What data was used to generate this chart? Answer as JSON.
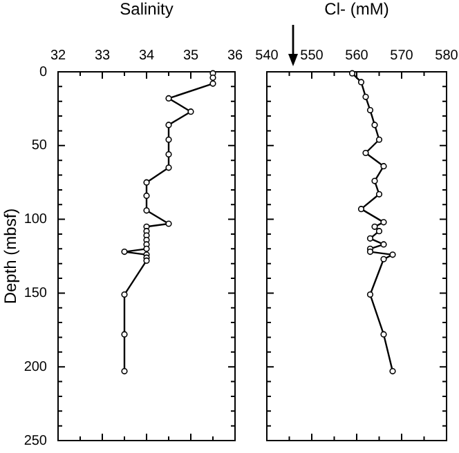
{
  "chart_data": [
    {
      "type": "line",
      "xlabel": "Salinity",
      "ylabel": "Depth (mbsf)",
      "xlim": [
        32,
        36
      ],
      "xticks": [
        32,
        {
          "value": 32.5,
          "label": null
        },
        33,
        {
          "value": 33.5,
          "label": null
        },
        34,
        {
          "value": 34.5,
          "label": null
        },
        35,
        {
          "value": 35.5,
          "label": null
        },
        36
      ],
      "ylim": [
        250,
        0
      ],
      "yticks": [
        0,
        {
          "value": 10,
          "label": null
        },
        {
          "value": 20,
          "label": null
        },
        {
          "value": 30,
          "label": null
        },
        {
          "value": 40,
          "label": null
        },
        50,
        {
          "value": 60,
          "label": null
        },
        {
          "value": 70,
          "label": null
        },
        {
          "value": 80,
          "label": null
        },
        {
          "value": 90,
          "label": null
        },
        100,
        {
          "value": 110,
          "label": null
        },
        {
          "value": 120,
          "label": null
        },
        {
          "value": 130,
          "label": null
        },
        {
          "value": 140,
          "label": null
        },
        150,
        {
          "value": 160,
          "label": null
        },
        {
          "value": 170,
          "label": null
        },
        {
          "value": 180,
          "label": null
        },
        {
          "value": 190,
          "label": null
        },
        200,
        {
          "value": 210,
          "label": null
        },
        {
          "value": 220,
          "label": null
        },
        {
          "value": 230,
          "label": null
        },
        {
          "value": 240,
          "label": null
        },
        250
      ],
      "marker": "circle",
      "line_style": "solid",
      "series": [
        {
          "color": "#000000",
          "x": [
            35.5,
            35.5,
            35.5,
            34.5,
            35.0,
            34.5,
            34.5,
            34.5,
            34.5,
            34.0,
            34.0,
            34.0,
            34.5,
            34.0,
            34.0,
            34.0,
            34.0,
            34.0,
            34.0,
            33.5,
            34.0,
            34.0,
            34.0,
            33.5,
            33.5,
            33.5
          ],
          "values": [
            1,
            4,
            8,
            18,
            27,
            36,
            46,
            56,
            65,
            75,
            84,
            94,
            103,
            105,
            108,
            111,
            114,
            117,
            120,
            122,
            124,
            126,
            128,
            151,
            178,
            203
          ]
        }
      ]
    },
    {
      "type": "line",
      "xlabel": "Cl- (mM)",
      "xlim": [
        540,
        580
      ],
      "xticks": [
        540,
        {
          "value": 545,
          "label": null
        },
        550,
        {
          "value": 555,
          "label": null
        },
        560,
        {
          "value": 565,
          "label": null
        },
        570,
        {
          "value": 575,
          "label": null
        },
        580
      ],
      "ylim": [
        250,
        0
      ],
      "yticks": [
        0,
        {
          "value": 10,
          "label": null
        },
        {
          "value": 20,
          "label": null
        },
        {
          "value": 30,
          "label": null
        },
        {
          "value": 40,
          "label": null
        },
        50,
        {
          "value": 60,
          "label": null
        },
        {
          "value": 70,
          "label": null
        },
        {
          "value": 80,
          "label": null
        },
        {
          "value": 90,
          "label": null
        },
        100,
        {
          "value": 110,
          "label": null
        },
        {
          "value": 120,
          "label": null
        },
        {
          "value": 130,
          "label": null
        },
        {
          "value": 140,
          "label": null
        },
        150,
        {
          "value": 160,
          "label": null
        },
        {
          "value": 170,
          "label": null
        },
        {
          "value": 180,
          "label": null
        },
        {
          "value": 190,
          "label": null
        },
        200,
        {
          "value": 210,
          "label": null
        },
        {
          "value": 220,
          "label": null
        },
        {
          "value": 230,
          "label": null
        },
        {
          "value": 240,
          "label": null
        },
        250
      ],
      "tick_labels": "x",
      "marker": "circle",
      "line_style": "solid",
      "series": [
        {
          "color": "#000000",
          "x": [
            559,
            561,
            562,
            563,
            564,
            565,
            562,
            566,
            564,
            565,
            561,
            566,
            564,
            565,
            563,
            566,
            563,
            563,
            568,
            566,
            563,
            566,
            568
          ],
          "values": [
            1,
            7,
            17,
            26,
            36,
            46,
            55,
            64,
            74,
            83,
            93,
            102,
            105,
            108,
            113,
            117,
            120,
            122,
            124,
            127,
            151,
            178,
            203
          ]
        }
      ]
    }
  ]
}
